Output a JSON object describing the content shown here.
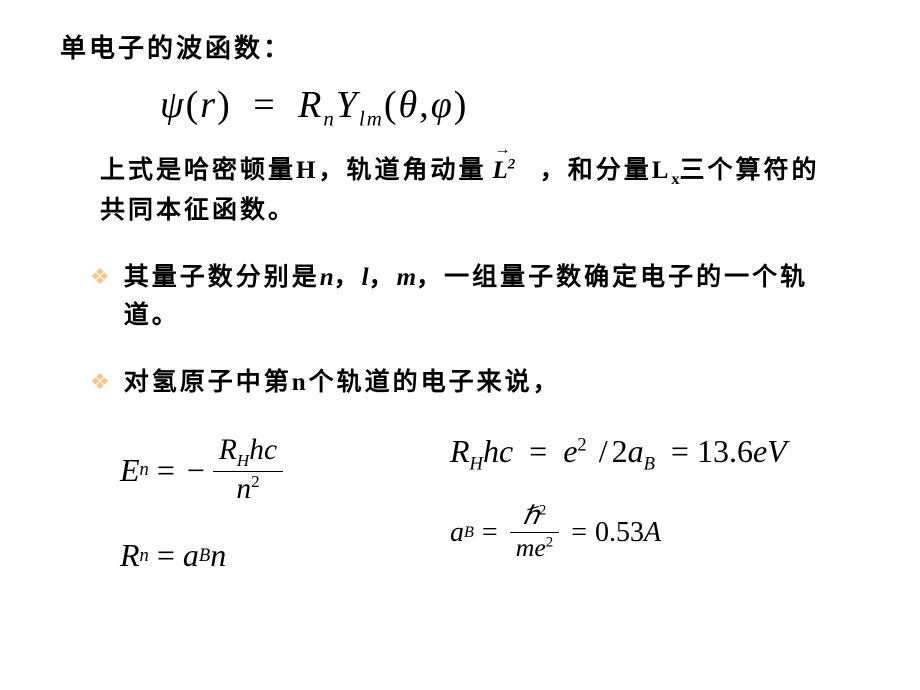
{
  "heading": "单电子的波函数：",
  "equation1": {
    "psi": "ψ",
    "r": "r",
    "eq": "=",
    "R": "R",
    "n": "n",
    "Y": "Y",
    "l": "l",
    "m": "m",
    "theta": "θ",
    "phi": "φ",
    "comma": ","
  },
  "paragraph1": {
    "t1": "上式是哈密顿量H，轨道角动量",
    "L": "L",
    "sq": "2",
    "arrow": "→",
    "t2": "，和分量L",
    "x": "x",
    "t3": "三个算符的共同本征函数。"
  },
  "bullet1": {
    "t1": "其量子数分别是",
    "n": "n",
    "c1": "，",
    "l": "l",
    "c2": "，",
    "m": "m",
    "t2": "，一组量子数确定电子的一个轨道。"
  },
  "bullet2": {
    "t1": "对氢原子中第",
    "n": "n",
    "t2": "个轨道的电子来说，"
  },
  "formulas": {
    "E": "E",
    "n": "n",
    "eq": "=",
    "minus": "−",
    "R": "R",
    "H": "H",
    "h": "h",
    "c": "c",
    "two": "2",
    "Rn": "R",
    "a": "a",
    "B": "B",
    "RHhc": "R",
    "e": "e",
    "slash": "/",
    "val1": "13.6",
    "eV": "eV",
    "hbar": "ℏ",
    "m_": "m",
    "val2": "0.53",
    "A": "A"
  },
  "style": {
    "bg": "#ffffff",
    "text": "#000000",
    "bullet_color": "#fbc58a",
    "cjk_font": "KaiTi",
    "math_font": "Times New Roman",
    "heading_size": 26,
    "body_size": 25,
    "eq_main_size": 38,
    "formula_size": 32
  }
}
